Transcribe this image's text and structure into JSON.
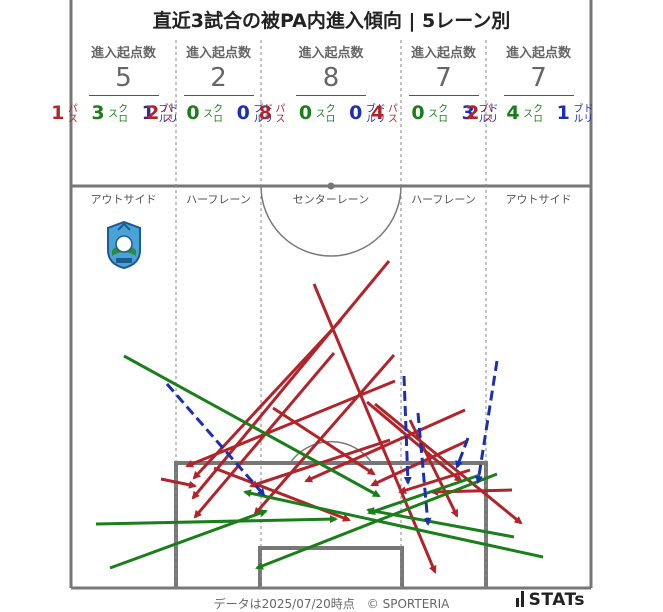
{
  "title": "直近3試合の被PA内進入傾向 | 5レーン別",
  "lane_header_label": "進入起点数",
  "lanes": [
    {
      "name": "アウトサイド",
      "total": "5",
      "pass": "1",
      "cross": "3",
      "dribble": "1"
    },
    {
      "name": "ハーフレーン",
      "total": "2",
      "pass": "2",
      "cross": "0",
      "dribble": "0"
    },
    {
      "name": "センターレーン",
      "total": "8",
      "pass": "8",
      "cross": "0",
      "dribble": "0"
    },
    {
      "name": "ハーフレーン",
      "total": "7",
      "pass": "4",
      "cross": "0",
      "dribble": "3"
    },
    {
      "name": "アウトサイド",
      "total": "7",
      "pass": "2",
      "cross": "4",
      "dribble": "1"
    }
  ],
  "kinds": {
    "pass": "パス",
    "cross": "クロス",
    "dribble": "ドリブル"
  },
  "footer": "データは2025/07/20時点　© SPORTERIA",
  "brand": "STATs",
  "colors": {
    "pass": "#b0242a",
    "cross": "#1a7f1a",
    "dribble": "#1b2fb3",
    "lines": "#777777"
  },
  "team_logo": "shonan-bellmare-crest"
}
